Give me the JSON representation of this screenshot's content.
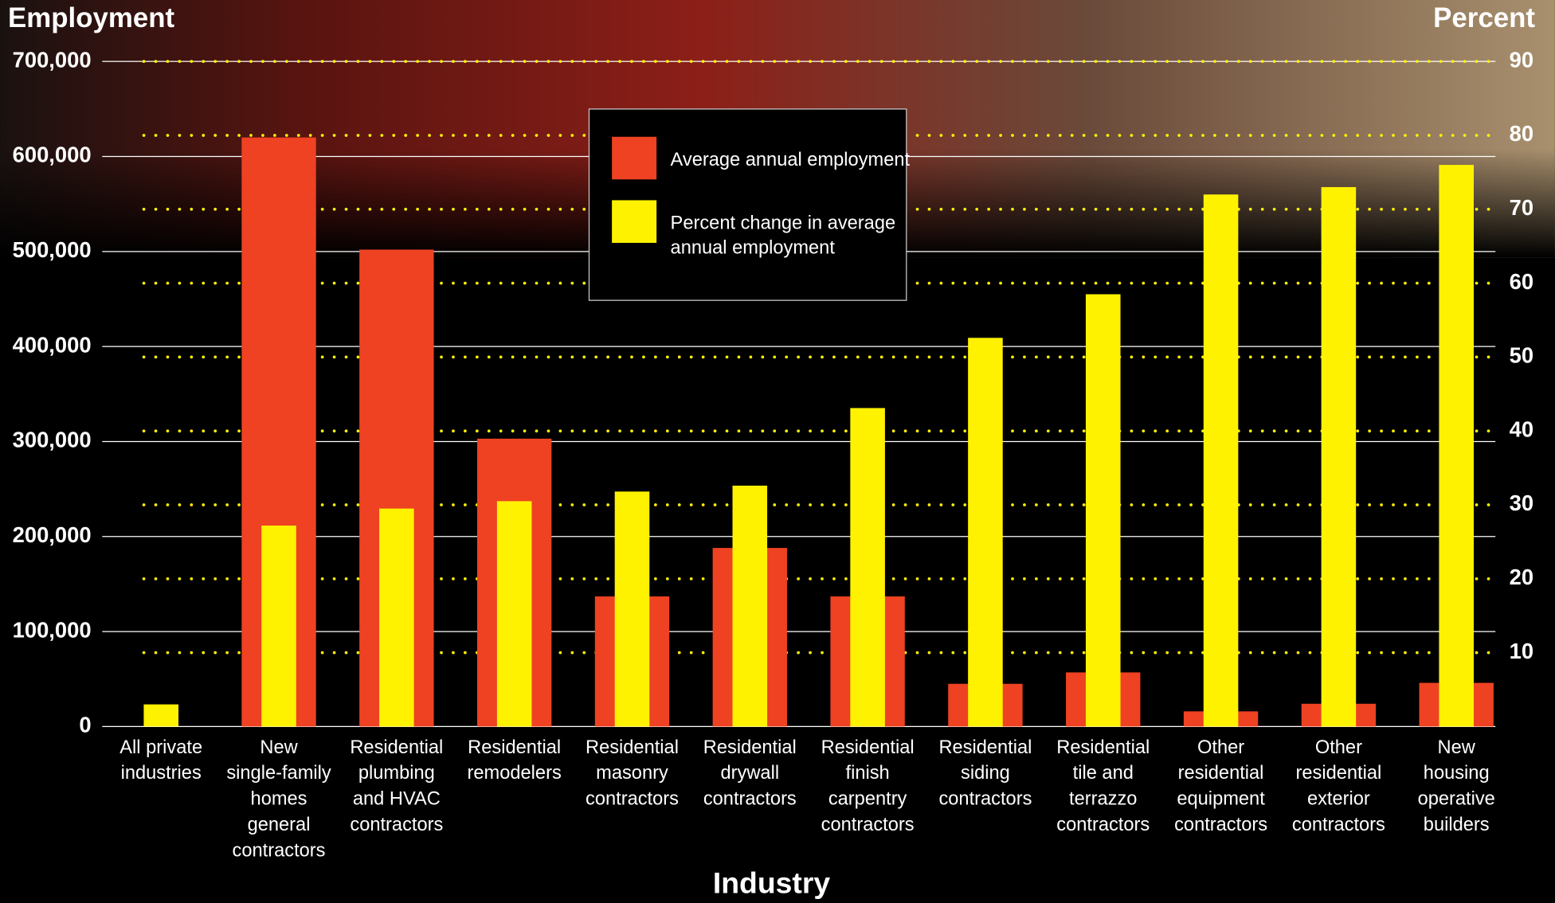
{
  "chart_data": {
    "type": "bar",
    "y_title": "Employment",
    "y2_title": "Percent",
    "x_title": "Industry",
    "categories": [
      "All private\nindustries",
      "New\nsingle-family\nhomes\ngeneral\ncontractors",
      "Residential\nplumbing\nand HVAC\ncontractors",
      "Residential\nremodelers",
      "Residential\nmasonry\ncontractors",
      "Residential\ndrywall\ncontractors",
      "Residential\nfinish\ncarpentry\ncontractors",
      "Residential\nsiding\ncontractors",
      "Residential\ntile and\nterrazzo\ncontractors",
      "Other\nresidential\nequipment\ncontractors",
      "Other\nresidential\nexterior\ncontractors",
      "New\nhousing\noperative\nbuilders"
    ],
    "series": [
      {
        "name": "Average annual employment",
        "color": "#ee4223",
        "axis": "y",
        "values": [
          null,
          620000,
          502000,
          303000,
          137000,
          188000,
          137000,
          45000,
          57000,
          16000,
          24000,
          46000
        ]
      },
      {
        "name": "Percent change in average\nannual employment",
        "color": "#fff200",
        "axis": "y2",
        "values": [
          3,
          27.2,
          29.5,
          30.5,
          31.8,
          32.6,
          43.1,
          52.6,
          58.5,
          72,
          73,
          76
        ]
      }
    ],
    "ylim": [
      0,
      700000
    ],
    "yticks": [
      0,
      {
        "value": 100000,
        "label": "100,000"
      },
      {
        "value": 200000,
        "label": "200,000"
      },
      {
        "value": 300000,
        "label": "300,000"
      },
      {
        "value": 400000,
        "label": "400,000"
      },
      {
        "value": 500000,
        "label": "500,000"
      },
      {
        "value": 600000,
        "label": "600,000"
      },
      {
        "value": 700000,
        "label": "700,000"
      }
    ],
    "y2lim": [
      0,
      90
    ],
    "y2ticks": [
      10,
      20,
      30,
      40,
      50,
      60,
      70,
      80,
      90
    ],
    "grid": true
  }
}
